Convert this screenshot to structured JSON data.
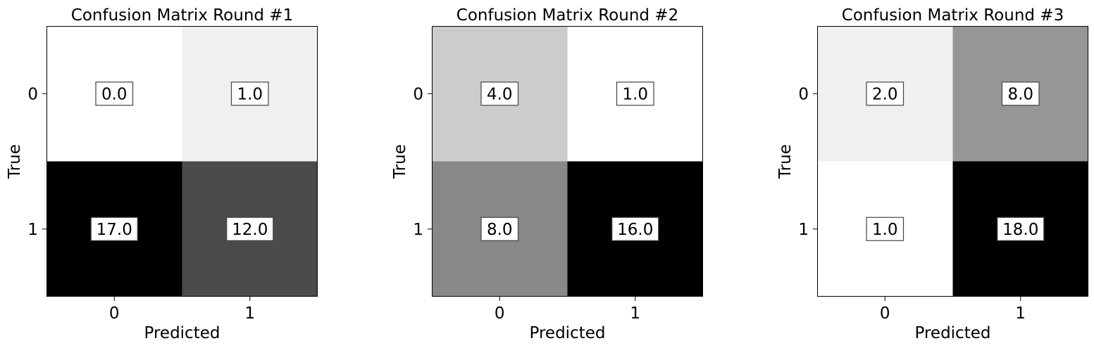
{
  "chart_data": [
    {
      "type": "heatmap",
      "title": "Confusion Matrix Round #1",
      "xlabel": "Predicted",
      "ylabel": "True",
      "x_categories": [
        "0",
        "1"
      ],
      "y_categories": [
        "0",
        "1"
      ],
      "values": [
        [
          0,
          1
        ],
        [
          17,
          12
        ]
      ],
      "value_labels": [
        [
          "0.0",
          "1.0"
        ],
        [
          "17.0",
          "12.0"
        ]
      ],
      "colormap": "greys",
      "colorbar": false
    },
    {
      "type": "heatmap",
      "title": "Confusion Matrix Round #2",
      "xlabel": "Predicted",
      "ylabel": "True",
      "x_categories": [
        "0",
        "1"
      ],
      "y_categories": [
        "0",
        "1"
      ],
      "values": [
        [
          4,
          1
        ],
        [
          8,
          16
        ]
      ],
      "value_labels": [
        [
          "4.0",
          "1.0"
        ],
        [
          "8.0",
          "16.0"
        ]
      ],
      "colormap": "greys",
      "colorbar": false
    },
    {
      "type": "heatmap",
      "title": "Confusion Matrix Round #3",
      "xlabel": "Predicted",
      "ylabel": "True",
      "x_categories": [
        "0",
        "1"
      ],
      "y_categories": [
        "0",
        "1"
      ],
      "values": [
        [
          2,
          8
        ],
        [
          1,
          18
        ]
      ],
      "value_labels": [
        [
          "2.0",
          "8.0"
        ],
        [
          "1.0",
          "18.0"
        ]
      ],
      "colormap": "greys",
      "colorbar": false
    }
  ],
  "colors": {
    "background": "#ffffff",
    "text": "#000000",
    "label_box_fill": "#ffffff",
    "label_box_border": "#444444",
    "axis": "#000000"
  }
}
